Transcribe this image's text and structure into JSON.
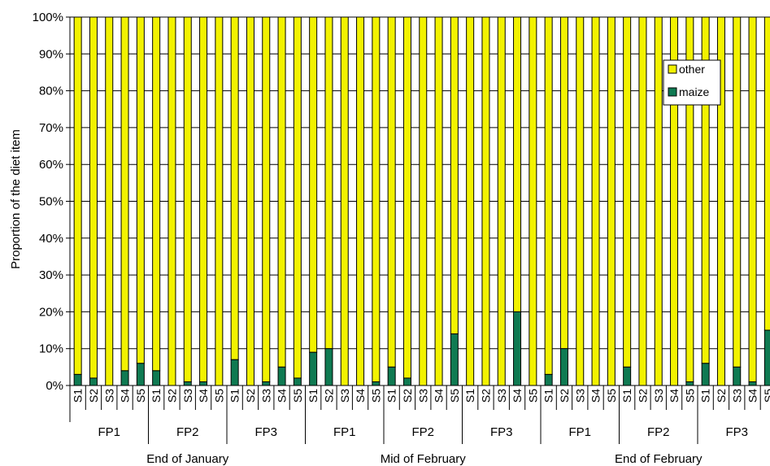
{
  "chart_data": {
    "type": "bar",
    "stacked": true,
    "ylabel": "Proportion of the diet item",
    "ylim": [
      0,
      100
    ],
    "yticks": [
      "0%",
      "10%",
      "20%",
      "30%",
      "40%",
      "50%",
      "60%",
      "70%",
      "80%",
      "90%",
      "100%"
    ],
    "grid": true,
    "legend_position": "top-right",
    "legend": [
      "other",
      "maize"
    ],
    "colors": {
      "other": "#f2f200",
      "maize": "#0f7a52",
      "edge": "#000000"
    },
    "periods": [
      {
        "label": "End of January",
        "groups": [
          {
            "label": "FP1",
            "samples": [
              "S1",
              "S2",
              "S3",
              "S4",
              "S5"
            ],
            "maize": [
              3,
              2,
              0,
              4,
              6
            ]
          },
          {
            "label": "FP2",
            "samples": [
              "S1",
              "S2",
              "S3",
              "S4",
              "S5"
            ],
            "maize": [
              4,
              0,
              1,
              1,
              0
            ]
          },
          {
            "label": "FP3",
            "samples": [
              "S1",
              "S2",
              "S3",
              "S4",
              "S5"
            ],
            "maize": [
              7,
              0,
              1,
              5,
              2
            ]
          }
        ]
      },
      {
        "label": "Mid of February",
        "groups": [
          {
            "label": "FP1",
            "samples": [
              "S1",
              "S2",
              "S3",
              "S4",
              "S5"
            ],
            "maize": [
              9,
              10,
              0,
              0,
              1
            ]
          },
          {
            "label": "FP2",
            "samples": [
              "S1",
              "S2",
              "S3",
              "S4",
              "S5"
            ],
            "maize": [
              5,
              2,
              0,
              0,
              14
            ]
          },
          {
            "label": "FP3",
            "samples": [
              "S1",
              "S2",
              "S3",
              "S4",
              "S5"
            ],
            "maize": [
              0,
              0,
              0,
              20,
              0
            ]
          }
        ]
      },
      {
        "label": "End of February",
        "groups": [
          {
            "label": "FP1",
            "samples": [
              "S1",
              "S2",
              "S3",
              "S4",
              "S5"
            ],
            "maize": [
              3,
              10,
              0,
              0,
              0
            ]
          },
          {
            "label": "FP2",
            "samples": [
              "S1",
              "S2",
              "S3",
              "S4",
              "S5"
            ],
            "maize": [
              5,
              0,
              0,
              0,
              1
            ]
          },
          {
            "label": "FP3",
            "samples": [
              "S1",
              "S2",
              "S3",
              "S4",
              "S5"
            ],
            "maize": [
              6,
              0,
              5,
              1,
              15
            ]
          }
        ]
      }
    ]
  }
}
